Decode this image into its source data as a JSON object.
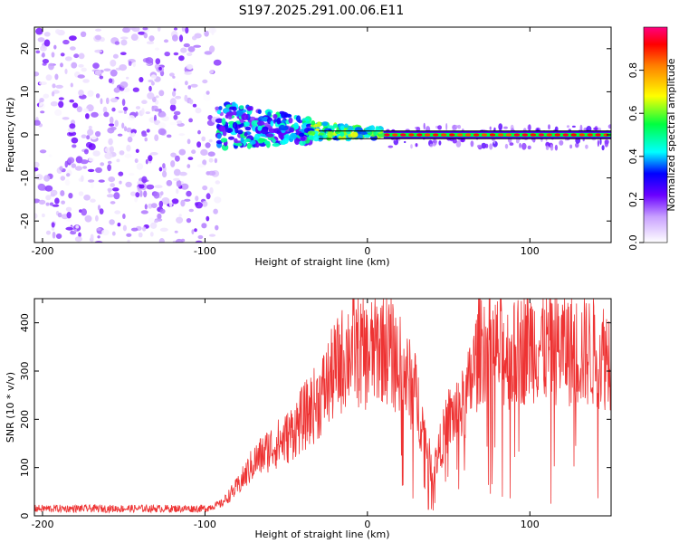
{
  "title": "S197.2025.291.00.06.E11",
  "colors": {
    "snr_line": "#ee3333",
    "axis": "#000000",
    "background": "#ffffff"
  },
  "chart_data": [
    {
      "type": "heatmap",
      "name": "spectrogram",
      "xlabel": "Height of straight line (km)",
      "ylabel": "Frequency (Hz)",
      "xlim": [
        -205,
        150
      ],
      "ylim": [
        -25,
        25
      ],
      "xticks": [
        -200,
        -100,
        0,
        100
      ],
      "yticks": [
        -20,
        -10,
        0,
        10,
        20
      ],
      "colorbar": {
        "label": "Normalized spectral amplitude",
        "range": [
          0,
          1
        ],
        "ticks": [
          "0.0",
          "0.2",
          "0.4",
          "0.6",
          "0.8"
        ],
        "tick_values": [
          0,
          0.2,
          0.4,
          0.6,
          0.8
        ]
      },
      "regions": [
        {
          "x_range": [
            -205,
            -92
          ],
          "f_range": [
            -25,
            25
          ],
          "mean_amplitude": 0.1,
          "description": "broadband noise"
        },
        {
          "x_range": [
            -92,
            -35
          ],
          "f_range": [
            -3,
            8
          ],
          "mean_amplitude": 0.35,
          "description": "emerging tone"
        },
        {
          "x_range": [
            -35,
            10
          ],
          "f_range": [
            -1,
            3
          ],
          "mean_amplitude": 0.5,
          "description": "converging tone"
        },
        {
          "x_range": [
            10,
            150
          ],
          "f_range": [
            0,
            0
          ],
          "mean_amplitude": 0.9,
          "description": "stable carrier near 0 Hz"
        }
      ]
    },
    {
      "type": "line",
      "name": "snr",
      "xlabel": "Height of straight line (km)",
      "ylabel": "SNR (10 * v/v)",
      "xlim": [
        -205,
        150
      ],
      "ylim": [
        0,
        450
      ],
      "xticks": [
        -200,
        -100,
        0,
        100
      ],
      "yticks": [
        0,
        100,
        200,
        300,
        400
      ],
      "series": [
        {
          "name": "SNR",
          "x": [
            -205,
            -150,
            -100,
            -90,
            -80,
            -70,
            -60,
            -50,
            -40,
            -30,
            -20,
            -10,
            0,
            10,
            20,
            30,
            40,
            50,
            60,
            70,
            80,
            90,
            100,
            110,
            120,
            130,
            140,
            150
          ],
          "values": [
            15,
            15,
            15,
            25,
            60,
            110,
            140,
            160,
            200,
            240,
            300,
            350,
            330,
            360,
            310,
            250,
            90,
            200,
            230,
            360,
            340,
            330,
            360,
            350,
            350,
            340,
            340,
            330
          ]
        }
      ]
    }
  ]
}
